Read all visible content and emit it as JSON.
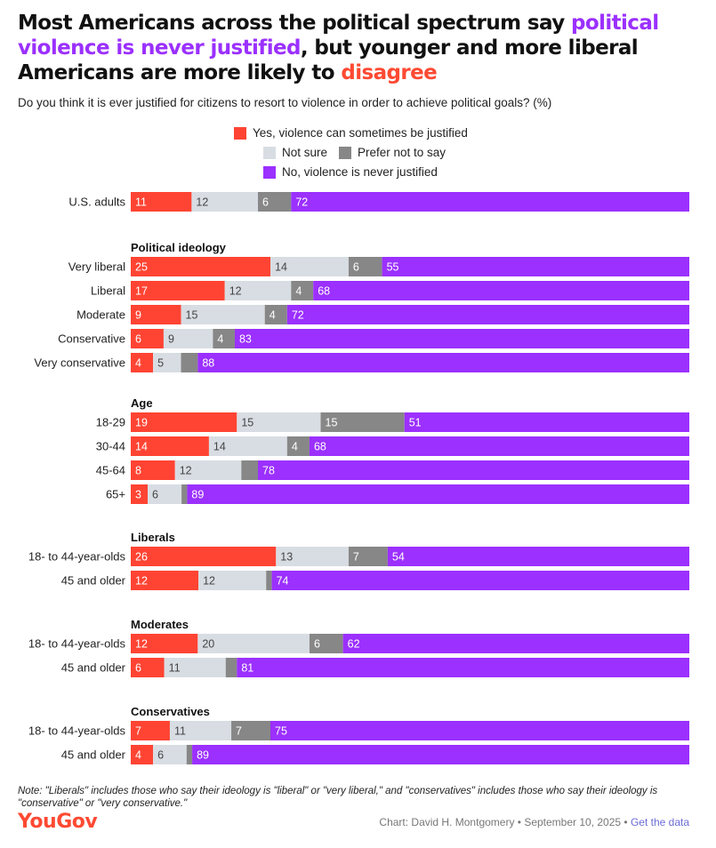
{
  "title": {
    "part1": "Most Americans across the political spectrum say ",
    "part2": "political violence is never justified",
    "part3": ", but younger and more liberal Americans are more likely to ",
    "part4": "disagree"
  },
  "subtitle": "Do you think it is ever justified for citizens to resort to violence in order to achieve political goals? (%)",
  "legend": {
    "yes": "Yes, violence can sometimes be justified",
    "not_sure": "Not sure",
    "prefer": "Prefer not to say",
    "no": "No, violence is never justified"
  },
  "colors": {
    "yes": "#ff4433",
    "not_sure": "#d8dde3",
    "prefer": "#878787",
    "no": "#9b30ff"
  },
  "chart_data": {
    "type": "bar",
    "orientation": "horizontal",
    "stacked": true,
    "unit": "%",
    "series": [
      {
        "key": "yes",
        "name": "Yes, violence can sometimes be justified"
      },
      {
        "key": "not_sure",
        "name": "Not sure"
      },
      {
        "key": "prefer",
        "name": "Prefer not to say"
      },
      {
        "key": "no",
        "name": "No, violence is never justified"
      }
    ],
    "groups": [
      {
        "heading": "",
        "rows": [
          {
            "label": "U.S. adults",
            "values": [
              11,
              12,
              6,
              72
            ]
          }
        ]
      },
      {
        "heading": "Political ideology",
        "rows": [
          {
            "label": "Very liberal",
            "values": [
              25,
              14,
              6,
              55
            ]
          },
          {
            "label": "Liberal",
            "values": [
              17,
              12,
              4,
              68
            ]
          },
          {
            "label": "Moderate",
            "values": [
              9,
              15,
              4,
              72
            ]
          },
          {
            "label": "Conservative",
            "values": [
              6,
              9,
              4,
              83
            ]
          },
          {
            "label": "Very conservative",
            "values": [
              4,
              5,
              3,
              88
            ]
          }
        ]
      },
      {
        "heading": "Age",
        "rows": [
          {
            "label": "18-29",
            "values": [
              19,
              15,
              15,
              51
            ]
          },
          {
            "label": "30-44",
            "values": [
              14,
              14,
              4,
              68
            ]
          },
          {
            "label": "45-64",
            "values": [
              8,
              12,
              3,
              78
            ]
          },
          {
            "label": "65+",
            "values": [
              3,
              6,
              1,
              89
            ]
          }
        ]
      },
      {
        "heading": "Liberals",
        "rows": [
          {
            "label": "18- to 44-year-olds",
            "values": [
              26,
              13,
              7,
              54
            ]
          },
          {
            "label": "45 and older",
            "values": [
              12,
              12,
              1,
              74
            ]
          }
        ]
      },
      {
        "heading": "Moderates",
        "rows": [
          {
            "label": "18- to 44-year-olds",
            "values": [
              12,
              20,
              6,
              62
            ]
          },
          {
            "label": "45 and older",
            "values": [
              6,
              11,
              2,
              81
            ]
          }
        ]
      },
      {
        "heading": "Conservatives",
        "rows": [
          {
            "label": "18- to 44-year-olds",
            "values": [
              7,
              11,
              7,
              75
            ]
          },
          {
            "label": "45 and older",
            "values": [
              4,
              6,
              1,
              89
            ]
          }
        ]
      }
    ]
  },
  "note": "Note: \"Liberals\" includes those who say their ideology is \"liberal\" or \"very liberal,\" and \"conservatives\" includes those who say their ideology is \"conservative\" or \"very conservative.\"",
  "footer": {
    "logo": "YouGov",
    "credit": "Chart: David H. Montgomery • September 10, 2025 • ",
    "link": "Get the data"
  }
}
